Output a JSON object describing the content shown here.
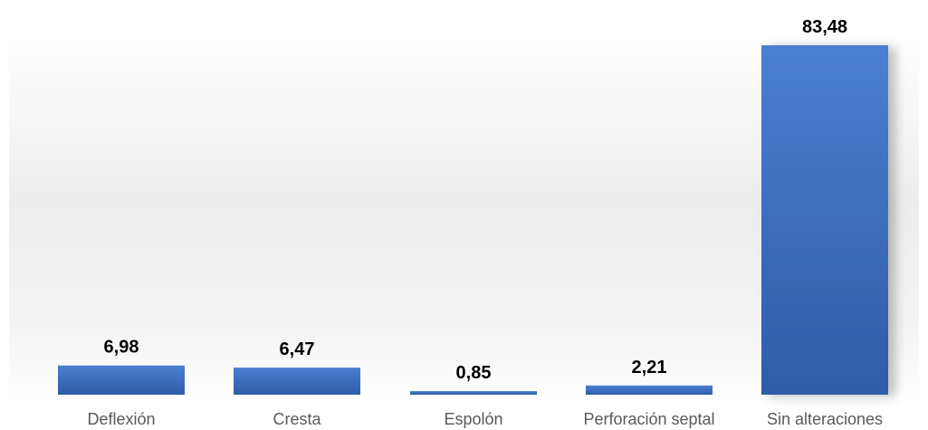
{
  "chart_data": {
    "type": "bar",
    "categories": [
      "Deflexión",
      "Cresta",
      "Espolón",
      "Perforación septal",
      "Sin alteraciones"
    ],
    "values": [
      6.98,
      6.47,
      0.85,
      2.21,
      83.48
    ],
    "value_labels": [
      "6,98",
      "6,47",
      "0,85",
      "2,21",
      "83,48"
    ],
    "ylim": [
      0,
      90
    ],
    "grid": false,
    "legend": "none",
    "colors": {
      "bar_top": "#4a7fd1",
      "bar_bottom": "#2e5ca8",
      "label": "#000000",
      "category": "#595959",
      "plot_bg": "#ececec"
    }
  }
}
